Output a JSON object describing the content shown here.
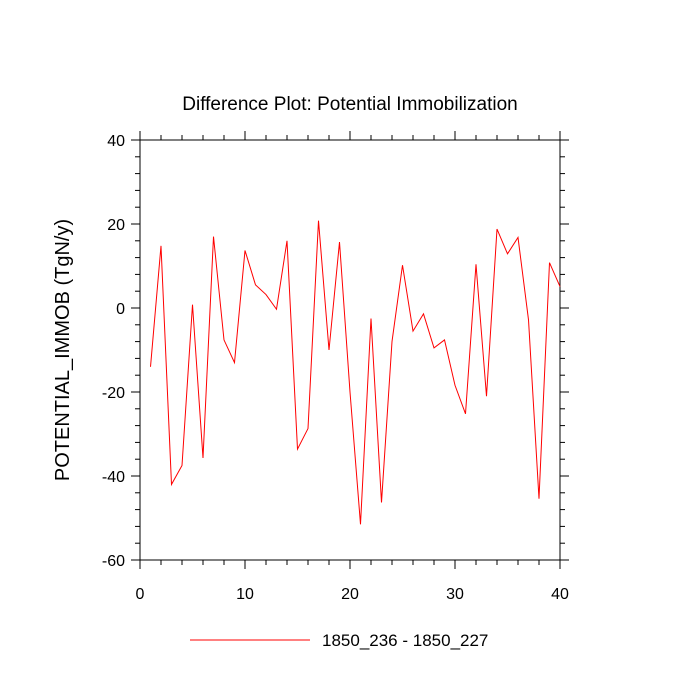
{
  "chart_data": {
    "type": "line",
    "title": "Difference Plot: Potential Immobilization",
    "xlabel": "",
    "ylabel": "POTENTIAL_IMMOB  (TgN/y)",
    "xlim": [
      0,
      40
    ],
    "ylim": [
      -60,
      40
    ],
    "x_ticks": [
      0,
      10,
      20,
      30,
      40
    ],
    "x_tick_labels": [
      "0",
      "10",
      "20",
      "30",
      "40"
    ],
    "y_ticks": [
      -60,
      -40,
      -20,
      0,
      20,
      40
    ],
    "y_tick_labels": [
      "-60",
      "-40",
      "-20",
      "0",
      "20",
      "40"
    ],
    "grid": false,
    "legend_position": "bottom",
    "series": [
      {
        "name": "1850_236 - 1850_227",
        "color": "#ff0000",
        "x": [
          1,
          2,
          3,
          4,
          5,
          6,
          7,
          8,
          9,
          10,
          11,
          12,
          13,
          14,
          15,
          16,
          17,
          18,
          19,
          20,
          21,
          22,
          23,
          24,
          25,
          26,
          27,
          28,
          29,
          30,
          31,
          32,
          33,
          34,
          35,
          36,
          37,
          38,
          39,
          40
        ],
        "values": [
          -14,
          14.8,
          -42,
          -37.5,
          0.8,
          -35.7,
          17,
          -7.6,
          -13,
          13.7,
          5.5,
          3.2,
          -0.3,
          16,
          -33.6,
          -28.7,
          20.8,
          -10,
          15.7,
          -20,
          -51.5,
          -2.5,
          -46.3,
          -8,
          10.2,
          -5.5,
          -1.4,
          -9.5,
          -7.6,
          -18.4,
          -25.2,
          10.4,
          -21,
          18.8,
          12.9,
          16.8,
          -2.8,
          -45.4,
          10.8,
          5.1
        ]
      }
    ]
  }
}
